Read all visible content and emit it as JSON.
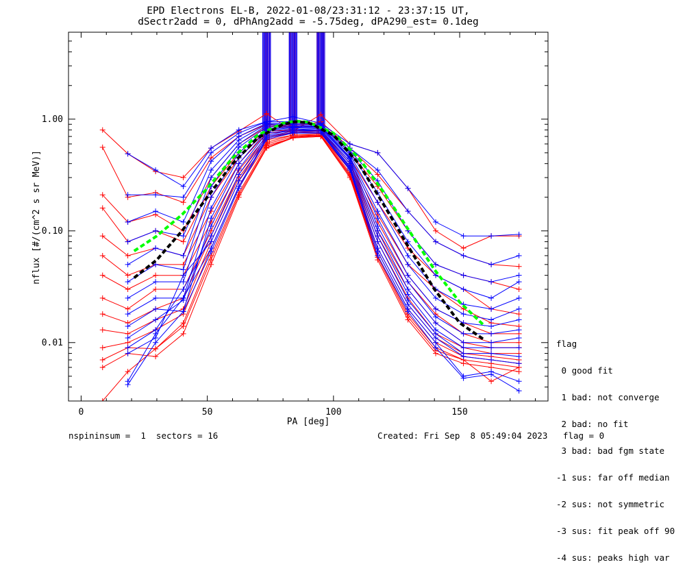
{
  "title_line1": "EPD Electrons EL-B, 2022-01-08/23:31:12 - 23:37:15 UT,",
  "title_line2": "dSectr2add = 0, dPhAng2add = -5.75deg, dPA290_est=   0.1deg",
  "legend": {
    "heading": "flag",
    "items": [
      " 0 good fit",
      " 1 bad: not converge",
      " 2 bad: no fit",
      " 3 bad: bad fgm state",
      "-1 sus: far off median",
      "-2 sus: not symmetric",
      "-3 sus: fit peak off 90",
      "-4 sus: peaks high var"
    ]
  },
  "footer_left": "nspininsum =  1  sectors = 16",
  "footer_right": "Created: Fri Sep  8 05:49:04 2023   flag = 0",
  "colors": {
    "red": "#ff0000",
    "blue": "#0000ff",
    "green": "#00ff00",
    "black": "#000000"
  },
  "chart_data": {
    "type": "line",
    "xlabel": "PA [deg]",
    "ylabel": "nflux [#/(cm^2 s sr MeV)]",
    "xlim": [
      -5,
      185
    ],
    "ylim": [
      0.003,
      6.0
    ],
    "yscale": "log",
    "x_ticks": [
      0,
      50,
      100,
      150
    ],
    "x_tick_labels": [
      "0",
      "50",
      "100",
      "150"
    ],
    "y_ticks": [
      0.01,
      0.1,
      1.0
    ],
    "y_tick_labels": [
      "0.01",
      "0.10",
      "1.00"
    ],
    "sectors_pa": [
      8.5,
      18.5,
      29.5,
      40.5,
      51.5,
      62.5,
      73.5,
      84,
      95,
      106.5,
      117.5,
      129.5,
      140.5,
      151.5,
      162.5,
      173.5
    ],
    "series": [
      {
        "color": "red",
        "values": [
          0.8,
          0.49,
          0.34,
          0.3,
          0.55,
          0.78,
          1.12,
          0.78,
          1.1,
          0.6,
          0.5,
          0.24,
          0.1,
          0.07,
          0.09,
          0.09
        ]
      },
      {
        "color": "red",
        "values": [
          0.56,
          0.2,
          0.22,
          0.18,
          0.45,
          0.7,
          0.9,
          0.85,
          0.95,
          0.55,
          0.32,
          0.15,
          0.08,
          0.06,
          0.05,
          0.048
        ]
      },
      {
        "color": "red",
        "values": [
          0.21,
          0.12,
          0.14,
          0.1,
          0.3,
          0.6,
          0.85,
          0.9,
          0.9,
          0.5,
          0.25,
          0.1,
          0.05,
          0.04,
          0.035,
          0.03
        ]
      },
      {
        "color": "red",
        "values": [
          0.16,
          0.08,
          0.1,
          0.08,
          0.25,
          0.5,
          0.8,
          0.88,
          0.85,
          0.45,
          0.18,
          0.07,
          0.04,
          0.03,
          0.02,
          0.018
        ]
      },
      {
        "color": "red",
        "values": [
          0.09,
          0.06,
          0.07,
          0.06,
          0.2,
          0.45,
          0.78,
          0.8,
          0.8,
          0.42,
          0.14,
          0.05,
          0.03,
          0.02,
          0.015,
          0.014
        ]
      },
      {
        "color": "red",
        "values": [
          0.06,
          0.04,
          0.05,
          0.05,
          0.15,
          0.4,
          0.75,
          0.78,
          0.8,
          0.4,
          0.12,
          0.04,
          0.02,
          0.015,
          0.012,
          0.012
        ]
      },
      {
        "color": "red",
        "values": [
          0.04,
          0.03,
          0.04,
          0.04,
          0.12,
          0.35,
          0.7,
          0.76,
          0.78,
          0.4,
          0.1,
          0.035,
          0.018,
          0.012,
          0.01,
          0.01
        ]
      },
      {
        "color": "red",
        "values": [
          0.025,
          0.02,
          0.03,
          0.03,
          0.1,
          0.32,
          0.68,
          0.75,
          0.76,
          0.38,
          0.09,
          0.03,
          0.015,
          0.01,
          0.009,
          0.009
        ]
      },
      {
        "color": "red",
        "values": [
          0.018,
          0.015,
          0.02,
          0.025,
          0.09,
          0.3,
          0.65,
          0.72,
          0.74,
          0.36,
          0.08,
          0.025,
          0.012,
          0.009,
          0.008,
          0.008
        ]
      },
      {
        "color": "red",
        "values": [
          0.013,
          0.012,
          0.016,
          0.02,
          0.08,
          0.28,
          0.62,
          0.72,
          0.72,
          0.35,
          0.07,
          0.022,
          0.011,
          0.008,
          0.0075,
          0.007
        ]
      },
      {
        "color": "red",
        "values": [
          0.009,
          0.01,
          0.013,
          0.018,
          0.07,
          0.25,
          0.6,
          0.7,
          0.72,
          0.33,
          0.065,
          0.02,
          0.01,
          0.0075,
          0.007,
          0.0065
        ]
      },
      {
        "color": "red",
        "values": [
          0.007,
          0.009,
          0.0088,
          0.015,
          0.06,
          0.22,
          0.58,
          0.68,
          0.7,
          0.32,
          0.06,
          0.018,
          0.009,
          0.007,
          0.0065,
          0.006
        ]
      },
      {
        "color": "red",
        "values": [
          0.006,
          0.008,
          0.0075,
          0.012,
          0.05,
          0.2,
          0.55,
          0.68,
          0.7,
          0.3,
          0.055,
          0.016,
          0.008,
          0.0065,
          0.006,
          0.0055
        ]
      },
      {
        "color": "red",
        "values": [
          0.003,
          0.0055,
          0.0088,
          0.014,
          0.055,
          0.21,
          0.56,
          0.69,
          0.71,
          0.31,
          0.058,
          0.017,
          0.0085,
          0.007,
          0.0045,
          0.006
        ]
      },
      {
        "color": "blue",
        "values": [
          null,
          0.49,
          0.35,
          0.25,
          0.55,
          0.8,
          0.95,
          1.05,
          0.92,
          0.6,
          0.5,
          0.24,
          0.12,
          0.09,
          0.09,
          0.093
        ]
      },
      {
        "color": "blue",
        "values": [
          null,
          0.21,
          0.21,
          0.2,
          0.5,
          0.75,
          0.95,
          0.95,
          0.9,
          0.55,
          0.35,
          0.15,
          0.08,
          0.06,
          0.05,
          0.06
        ]
      },
      {
        "color": "blue",
        "values": [
          null,
          0.12,
          0.15,
          0.12,
          0.42,
          0.7,
          0.92,
          0.92,
          0.9,
          0.52,
          0.28,
          0.1,
          0.05,
          0.04,
          0.035,
          0.04
        ]
      },
      {
        "color": "blue",
        "values": [
          null,
          0.08,
          0.1,
          0.09,
          0.35,
          0.65,
          0.9,
          0.9,
          0.88,
          0.5,
          0.22,
          0.08,
          0.04,
          0.03,
          0.025,
          0.035
        ]
      },
      {
        "color": "blue",
        "values": [
          null,
          0.05,
          0.07,
          0.06,
          0.3,
          0.6,
          0.88,
          0.88,
          0.86,
          0.48,
          0.18,
          0.06,
          0.03,
          0.022,
          0.02,
          0.025
        ]
      },
      {
        "color": "blue",
        "values": [
          null,
          0.035,
          0.05,
          0.045,
          0.25,
          0.56,
          0.85,
          0.86,
          0.85,
          0.46,
          0.15,
          0.05,
          0.025,
          0.018,
          0.016,
          0.02
        ]
      },
      {
        "color": "blue",
        "values": [
          null,
          0.025,
          0.035,
          0.035,
          0.2,
          0.5,
          0.82,
          0.85,
          0.84,
          0.45,
          0.13,
          0.04,
          0.02,
          0.015,
          0.014,
          0.016
        ]
      },
      {
        "color": "blue",
        "values": [
          null,
          0.018,
          0.025,
          0.025,
          0.16,
          0.45,
          0.8,
          0.84,
          0.82,
          0.44,
          0.11,
          0.035,
          0.017,
          0.012,
          0.012,
          0.013
        ]
      },
      {
        "color": "blue",
        "values": [
          null,
          0.014,
          0.02,
          0.019,
          0.13,
          0.4,
          0.78,
          0.82,
          0.8,
          0.42,
          0.1,
          0.03,
          0.015,
          0.01,
          0.01,
          0.011
        ]
      },
      {
        "color": "blue",
        "values": [
          null,
          0.011,
          0.016,
          0.024,
          0.11,
          0.36,
          0.75,
          0.8,
          0.8,
          0.4,
          0.09,
          0.027,
          0.013,
          0.009,
          0.009,
          0.009
        ]
      },
      {
        "color": "blue",
        "values": [
          null,
          0.009,
          0.013,
          0.03,
          0.09,
          0.32,
          0.72,
          0.8,
          0.78,
          0.38,
          0.08,
          0.024,
          0.012,
          0.008,
          0.008,
          0.0075
        ]
      },
      {
        "color": "blue",
        "values": [
          null,
          0.008,
          0.011,
          0.04,
          0.08,
          0.28,
          0.7,
          0.78,
          0.78,
          0.37,
          0.07,
          0.022,
          0.011,
          0.0075,
          0.007,
          0.0065
        ]
      },
      {
        "color": "blue",
        "values": [
          null,
          0.0045,
          0.012,
          0.025,
          0.07,
          0.25,
          0.68,
          0.76,
          0.76,
          0.36,
          0.065,
          0.02,
          0.01,
          0.005,
          0.0055,
          0.0045
        ]
      },
      {
        "color": "blue",
        "values": [
          null,
          0.0042,
          0.01,
          0.019,
          0.065,
          0.24,
          0.66,
          0.75,
          0.75,
          0.35,
          0.06,
          0.019,
          0.009,
          0.0048,
          0.0052,
          0.0037
        ]
      },
      {
        "color": "green",
        "dashed": true,
        "x": [
          21,
          30,
          40,
          50,
          60,
          70,
          80,
          85,
          90,
          100,
          110,
          120,
          130,
          140,
          150,
          160
        ],
        "values": [
          0.066,
          0.09,
          0.14,
          0.24,
          0.45,
          0.72,
          0.92,
          0.96,
          0.94,
          0.75,
          0.45,
          0.22,
          0.1,
          0.045,
          0.023,
          0.014
        ]
      },
      {
        "color": "black",
        "dashed": true,
        "x": [
          21,
          30,
          40,
          50,
          60,
          70,
          80,
          85,
          90,
          100,
          110,
          120,
          130,
          140,
          150,
          160
        ],
        "values": [
          0.038,
          0.055,
          0.1,
          0.2,
          0.4,
          0.68,
          0.9,
          0.95,
          0.93,
          0.72,
          0.4,
          0.17,
          0.07,
          0.03,
          0.015,
          0.0105
        ]
      }
    ]
  }
}
